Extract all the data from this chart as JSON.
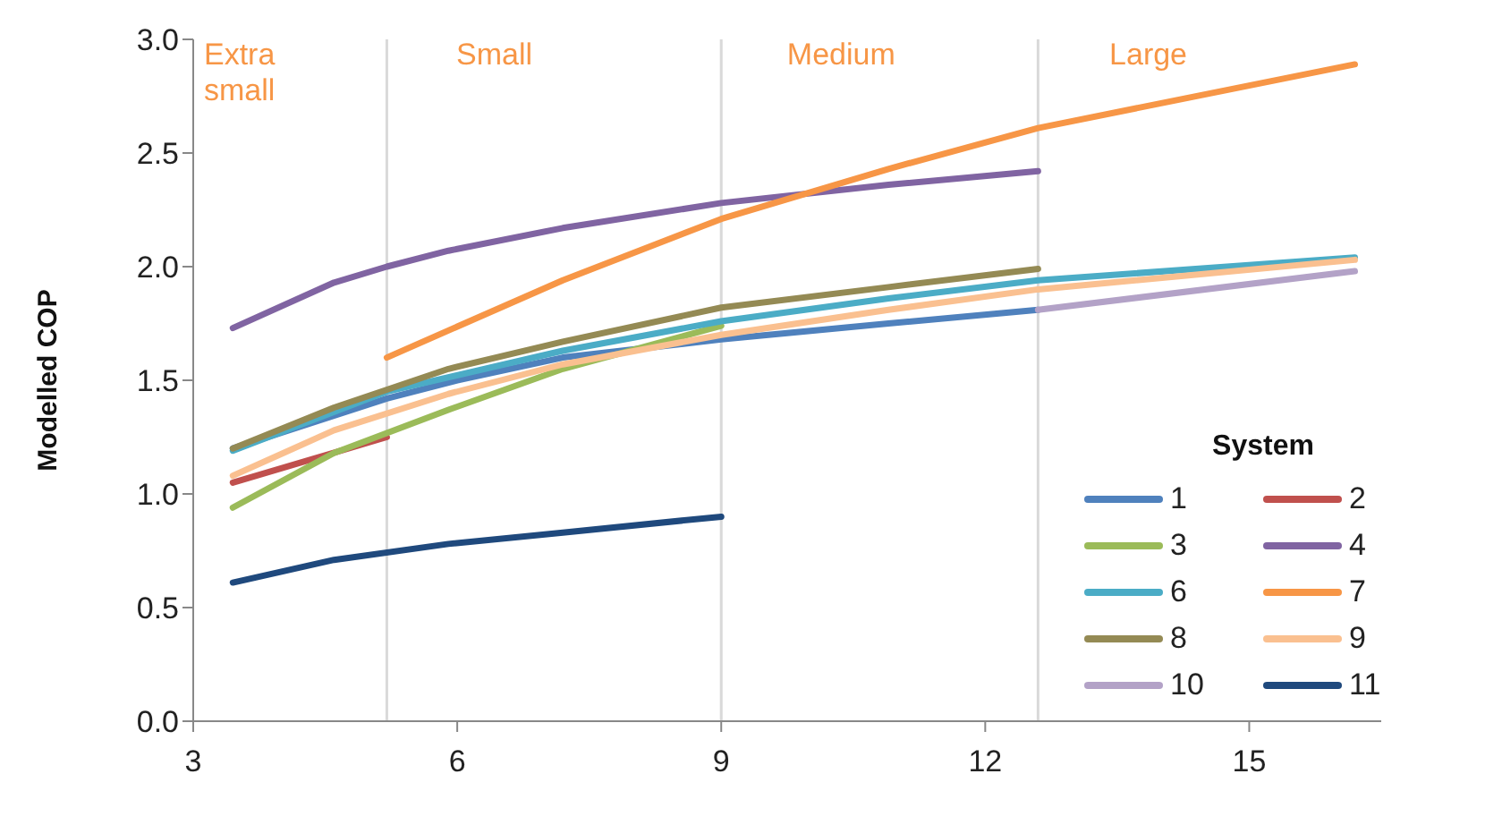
{
  "chart_data": {
    "type": "line",
    "ylabel": "Modelled  COP",
    "legend_title": "System",
    "legend": "bottom right",
    "grid": false,
    "marker": "none",
    "line_style": "solid",
    "xlim": [
      3,
      16.5
    ],
    "xticks": [
      3,
      6,
      9,
      12,
      15
    ],
    "ylim": [
      0,
      3
    ],
    "yticks": [
      {
        "value": 0,
        "label": "0.0"
      },
      {
        "value": 0.5,
        "label": "0.5"
      },
      {
        "value": 1,
        "label": "1.0"
      },
      {
        "value": 1.5,
        "label": "1.5"
      },
      {
        "value": 2,
        "label": "2.0"
      },
      {
        "value": 2.5,
        "label": "2.5"
      },
      {
        "value": 3,
        "label": "3.0"
      }
    ],
    "ref_lines": [
      {
        "axis": "x",
        "value": 5.2,
        "color": "#d9d9d9"
      },
      {
        "axis": "x",
        "value": 9,
        "color": "#d9d9d9"
      },
      {
        "axis": "x",
        "value": 12.6,
        "color": "#d9d9d9"
      }
    ],
    "annotations": [
      "Extra small",
      "Small",
      "Medium",
      "Large"
    ],
    "series": [
      {
        "name": "1",
        "color": "#4f81bd",
        "x": [
          3.45,
          5.2,
          6,
          7.2,
          9,
          10.9,
          12.6
        ],
        "values": [
          1.2,
          1.42,
          1.5,
          1.6,
          1.68,
          1.75,
          1.81
        ]
      },
      {
        "name": "2",
        "color": "#c0504d",
        "x": [
          3.45,
          5.2
        ],
        "values": [
          1.05,
          1.25
        ]
      },
      {
        "name": "3",
        "color": "#9bbb59",
        "x": [
          3.45,
          4.6,
          5.9,
          7.2,
          9
        ],
        "values": [
          0.94,
          1.18,
          1.37,
          1.55,
          1.74
        ]
      },
      {
        "name": "4",
        "color": "#8064a2",
        "x": [
          3.45,
          4.6,
          5.2,
          5.9,
          7.2,
          9,
          10.9,
          12.6
        ],
        "values": [
          1.73,
          1.93,
          2.0,
          2.07,
          2.17,
          2.28,
          2.36,
          2.42
        ]
      },
      {
        "name": "6",
        "color": "#4bacc6",
        "x": [
          3.45,
          5.2,
          7.2,
          9,
          10.9,
          12.6,
          16.2
        ],
        "values": [
          1.19,
          1.45,
          1.63,
          1.76,
          1.86,
          1.94,
          2.04
        ]
      },
      {
        "name": "7",
        "color": "#f79646",
        "x": [
          5.2,
          7.2,
          9,
          10.9,
          12.6,
          16.2
        ],
        "values": [
          1.6,
          1.94,
          2.21,
          2.43,
          2.61,
          2.89
        ]
      },
      {
        "name": "8",
        "color": "#948a54",
        "x": [
          3.45,
          4.6,
          5.9,
          7.2,
          9,
          10.9,
          12.6
        ],
        "values": [
          1.2,
          1.38,
          1.55,
          1.67,
          1.82,
          1.91,
          1.99
        ]
      },
      {
        "name": "9",
        "color": "#fac090",
        "x": [
          3.45,
          4.6,
          5.9,
          7.2,
          9,
          10.9,
          12.6,
          16.2
        ],
        "values": [
          1.08,
          1.28,
          1.44,
          1.57,
          1.7,
          1.81,
          1.9,
          2.03
        ]
      },
      {
        "name": "10",
        "color": "#b3a2c7",
        "x": [
          12.6,
          16.2
        ],
        "values": [
          1.81,
          1.98
        ]
      },
      {
        "name": "11",
        "color": "#1f497d",
        "x": [
          3.45,
          4.6,
          5.9,
          7.2,
          9
        ],
        "values": [
          0.61,
          0.71,
          0.78,
          0.83,
          0.9
        ]
      }
    ]
  }
}
